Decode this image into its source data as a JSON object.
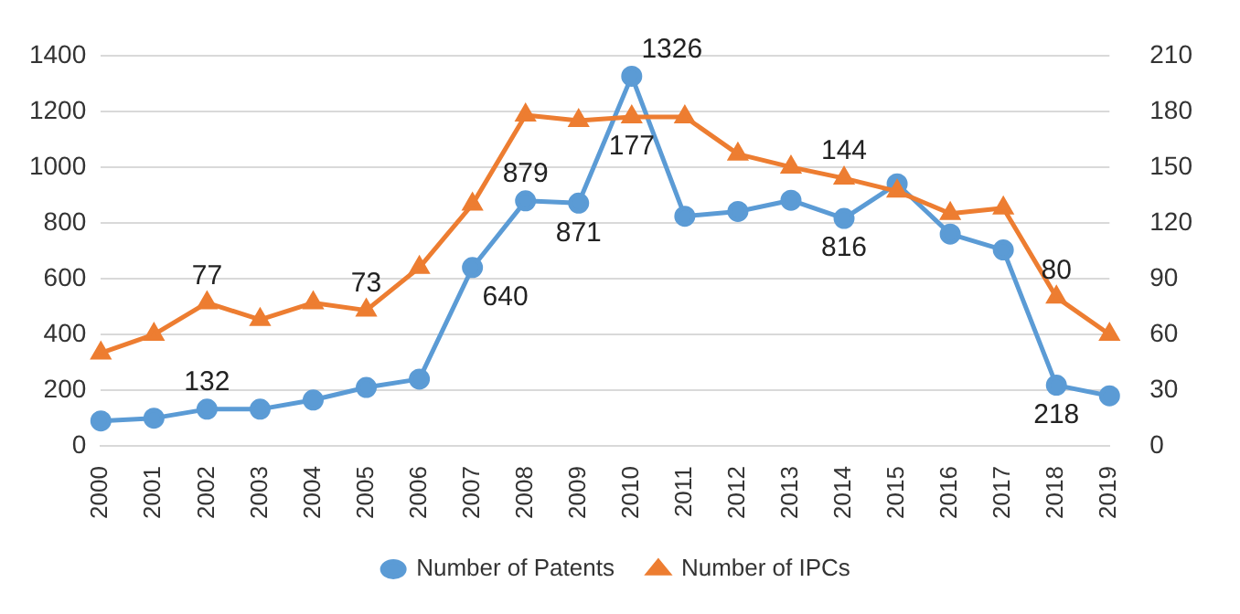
{
  "chart_data": {
    "type": "line",
    "categories": [
      "2000",
      "2001",
      "2002",
      "2003",
      "2004",
      "2005",
      "2006",
      "2007",
      "2008",
      "2009",
      "2010",
      "2011",
      "2012",
      "2013",
      "2014",
      "2015",
      "2016",
      "2017",
      "2018",
      "2019"
    ],
    "series": [
      {
        "name": "Number of Patents",
        "color": "#5b9bd5",
        "marker": "circle",
        "values": [
          90,
          100,
          132,
          132,
          165,
          210,
          240,
          640,
          879,
          871,
          1326,
          824,
          841,
          881,
          816,
          940,
          760,
          703,
          218,
          180
        ],
        "value_labels": [
          null,
          null,
          "132",
          null,
          null,
          null,
          null,
          "640",
          "879",
          "871",
          "1326",
          null,
          null,
          null,
          "816",
          null,
          null,
          null,
          "218",
          null
        ]
      },
      {
        "name": "Number of IPCs",
        "color": "#ed7d31",
        "marker": "triangle",
        "axis": "y2",
        "values": [
          50,
          60,
          77,
          68,
          77,
          73,
          96,
          130,
          178,
          175,
          177,
          177,
          157,
          150,
          144,
          137,
          125,
          128,
          80,
          60
        ],
        "value_labels": [
          null,
          null,
          "77",
          null,
          null,
          "73",
          null,
          null,
          null,
          null,
          "177",
          null,
          null,
          null,
          "144",
          null,
          null,
          null,
          "80",
          null
        ]
      }
    ],
    "ylim": [
      0,
      1400
    ],
    "yticks": [
      0,
      200,
      400,
      600,
      800,
      1000,
      1200,
      1400
    ],
    "y2lim": [
      0,
      210
    ],
    "y2ticks": [
      0,
      30,
      60,
      90,
      120,
      150,
      180,
      210
    ],
    "grid": "y",
    "legend": "bottom"
  }
}
